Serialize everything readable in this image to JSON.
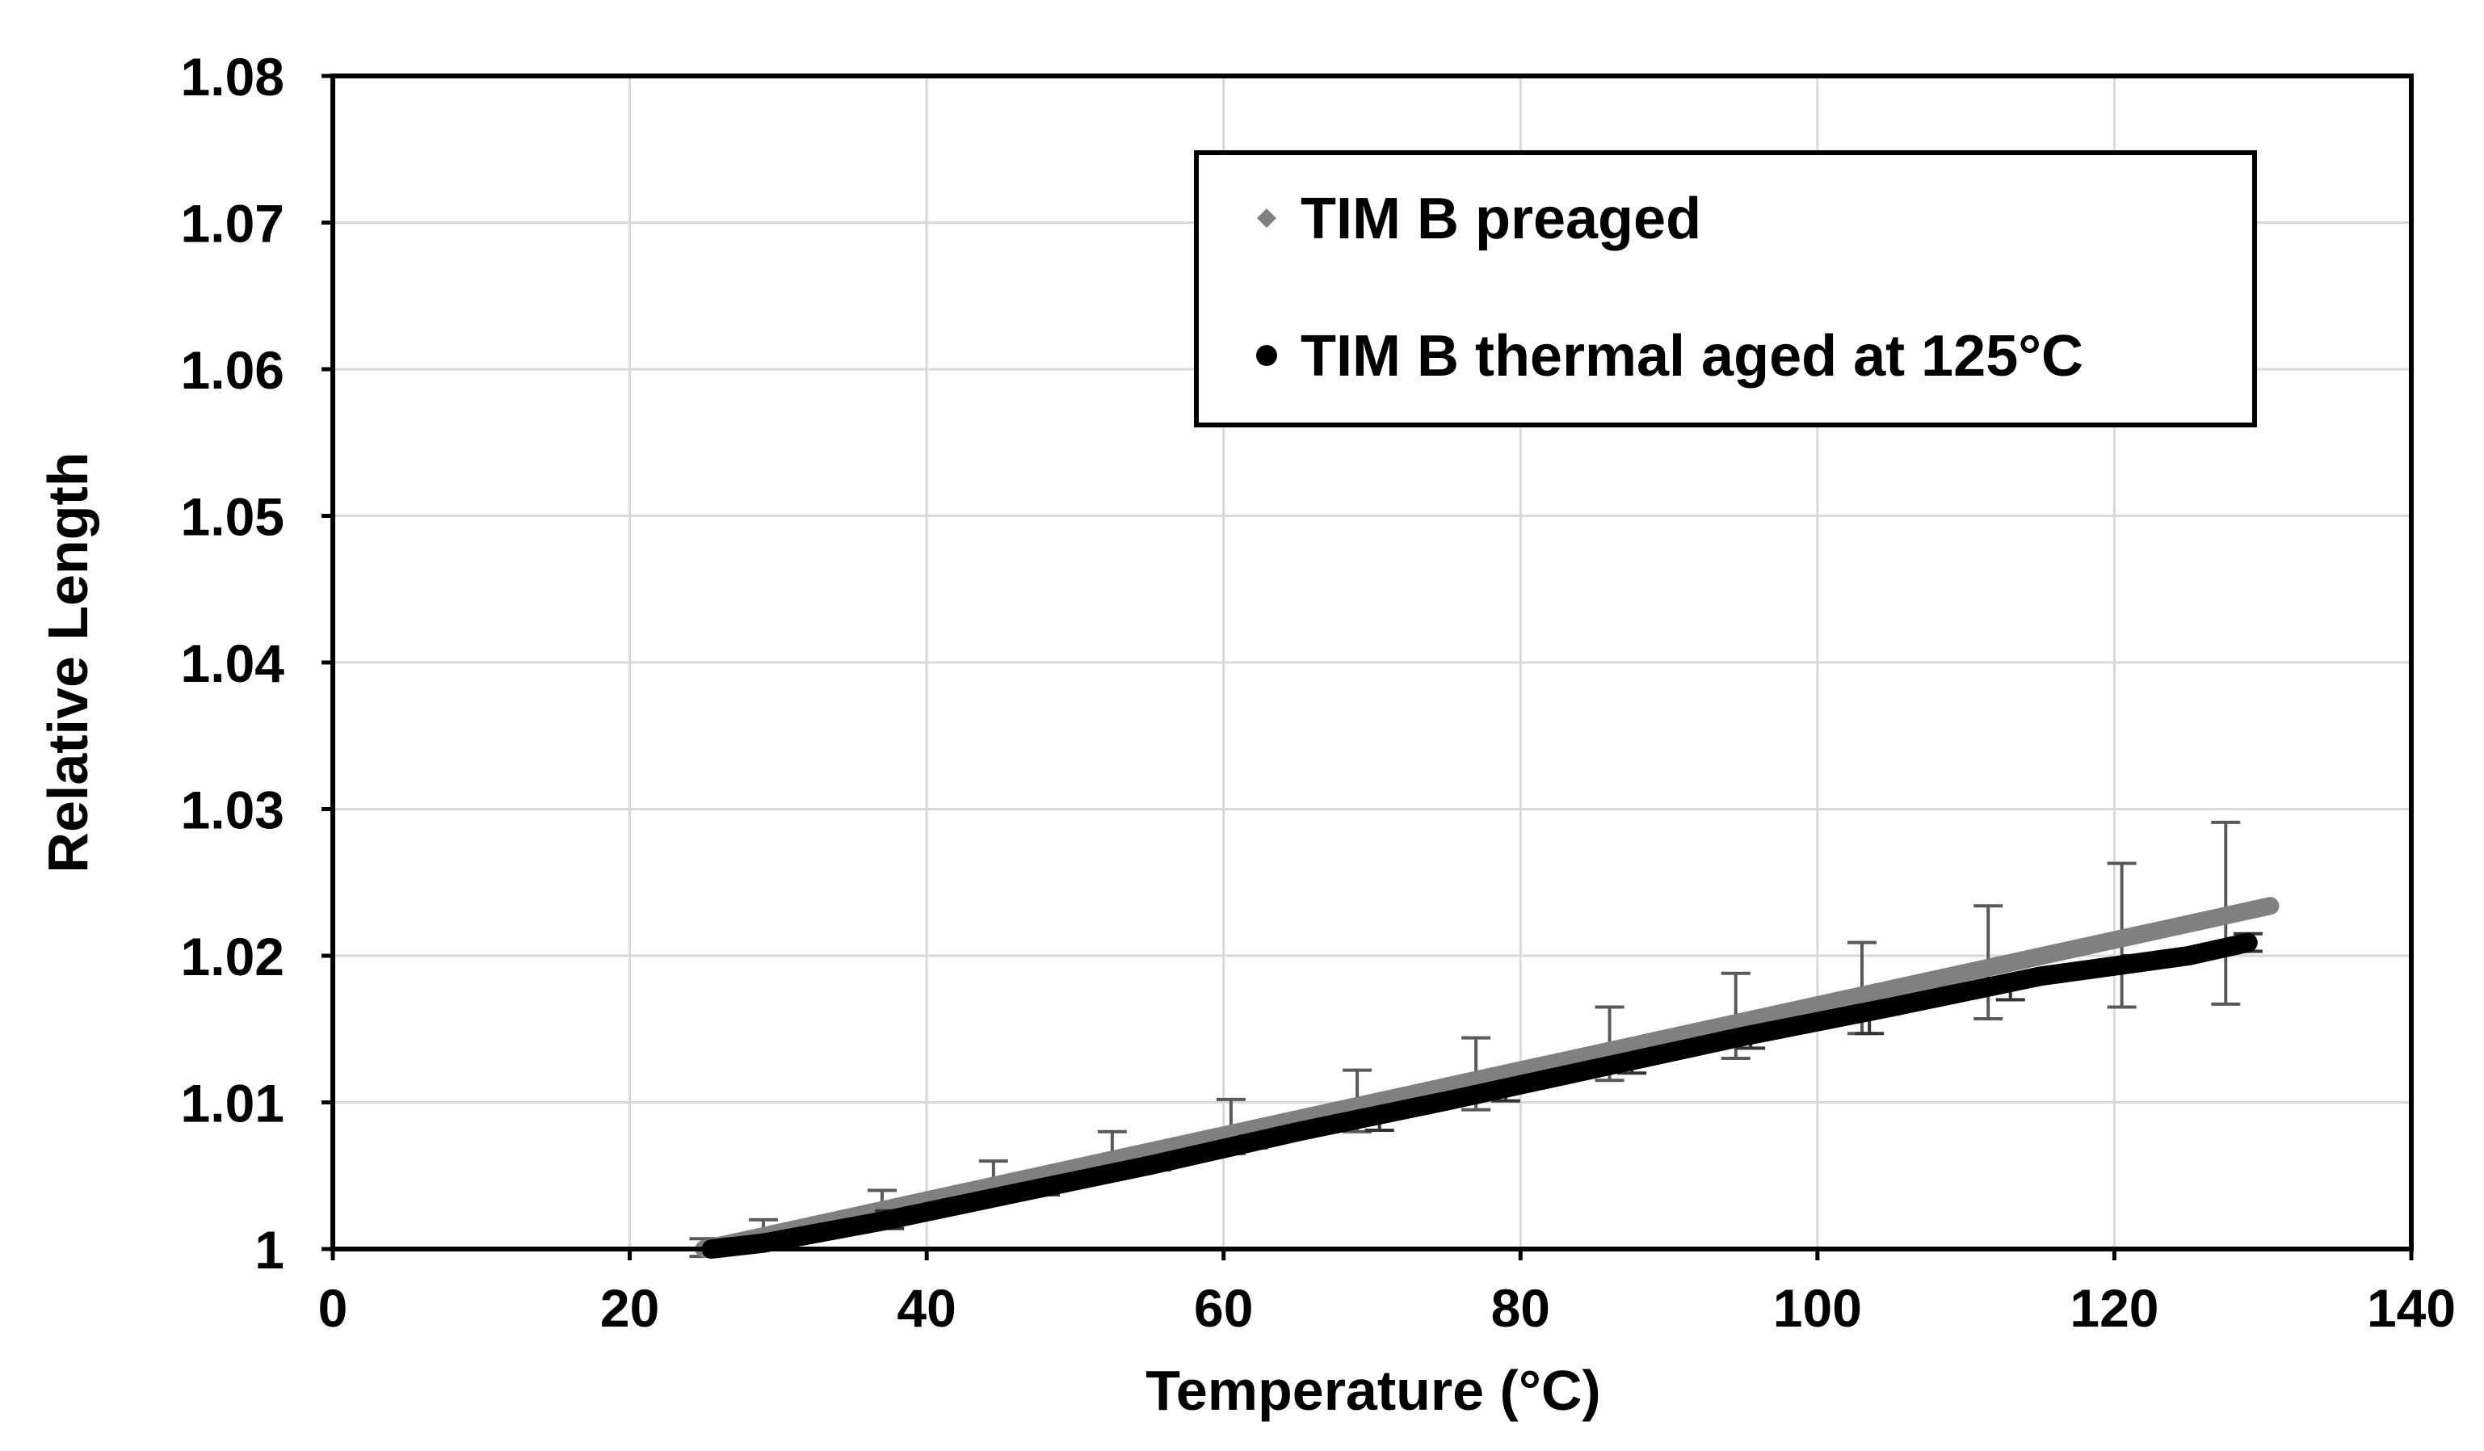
{
  "chart_data": {
    "type": "line",
    "title": "",
    "xlabel": "Temperature (°C)",
    "ylabel": "Relative Length",
    "xlim": [
      0,
      140
    ],
    "ylim": [
      1,
      1.08
    ],
    "x_ticks": [
      "0",
      "20",
      "40",
      "60",
      "80",
      "100",
      "120",
      "140"
    ],
    "y_ticks": [
      "1",
      "1.01",
      "1.02",
      "1.03",
      "1.04",
      "1.05",
      "1.06",
      "1.07",
      "1.08"
    ],
    "x_tick_values": [
      0,
      20,
      40,
      60,
      80,
      100,
      120,
      140
    ],
    "y_tick_values": [
      1,
      1.01,
      1.02,
      1.03,
      1.04,
      1.05,
      1.06,
      1.07,
      1.08
    ],
    "grid": true,
    "legend": {
      "position": "top-right"
    },
    "series": [
      {
        "name": "TIM B preaged",
        "marker": "diamond",
        "color": "#808080",
        "line": [
          [
            25,
            1.0
          ],
          [
            130.5,
            1.0234
          ]
        ],
        "error_bars": [
          {
            "x": 25,
            "y": 1.0002,
            "low": 0.9995,
            "high": 1.0007
          },
          {
            "x": 29,
            "y": 1.0011,
            "low": 1.0005,
            "high": 1.002
          },
          {
            "x": 37,
            "y": 1.0029,
            "low": 1.002,
            "high": 1.004
          },
          {
            "x": 44.5,
            "y": 1.0046,
            "low": 1.0035,
            "high": 1.006
          },
          {
            "x": 52.5,
            "y": 1.0065,
            "low": 1.005,
            "high": 1.008
          },
          {
            "x": 60.5,
            "y": 1.0083,
            "low": 1.0065,
            "high": 1.0102
          },
          {
            "x": 69,
            "y": 1.0101,
            "low": 1.008,
            "high": 1.0122
          },
          {
            "x": 77,
            "y": 1.0119,
            "low": 1.0095,
            "high": 1.0144
          },
          {
            "x": 86,
            "y": 1.014,
            "low": 1.0115,
            "high": 1.0165
          },
          {
            "x": 94.5,
            "y": 1.0158,
            "low": 1.013,
            "high": 1.0188
          },
          {
            "x": 103,
            "y": 1.0177,
            "low": 1.0147,
            "high": 1.0209
          },
          {
            "x": 111.5,
            "y": 1.0196,
            "low": 1.0157,
            "high": 1.0234
          },
          {
            "x": 120.5,
            "y": 1.0215,
            "low": 1.0165,
            "high": 1.0263
          },
          {
            "x": 127.5,
            "y": 1.023,
            "low": 1.0167,
            "high": 1.0291
          }
        ]
      },
      {
        "name": "TIM B thermal aged at 125°C",
        "marker": "circle",
        "color": "#000000",
        "line": [
          [
            25.5,
            1.0
          ],
          [
            29,
            1.0004
          ],
          [
            37,
            1.0019
          ],
          [
            45,
            1.0036
          ],
          [
            55,
            1.0057
          ],
          [
            65,
            1.008
          ],
          [
            75,
            1.0101
          ],
          [
            85,
            1.0123
          ],
          [
            95,
            1.0145
          ],
          [
            105,
            1.0165
          ],
          [
            115,
            1.0186
          ],
          [
            125,
            1.02
          ],
          [
            129,
            1.0209
          ]
        ],
        "error_bars": [
          {
            "x": 30,
            "y": 1.0005,
            "low": 1.0002,
            "high": 1.0008
          },
          {
            "x": 37.5,
            "y": 1.002,
            "low": 1.0014,
            "high": 1.0026
          },
          {
            "x": 48,
            "y": 1.0041,
            "low": 1.0037,
            "high": 1.0045
          },
          {
            "x": 55.5,
            "y": 1.0058,
            "low": 1.0054,
            "high": 1.0062
          },
          {
            "x": 62,
            "y": 1.0073,
            "low": 1.0069,
            "high": 1.0077
          },
          {
            "x": 70.5,
            "y": 1.0085,
            "low": 1.0081,
            "high": 1.0089
          },
          {
            "x": 79,
            "y": 1.0105,
            "low": 1.0101,
            "high": 1.0109
          },
          {
            "x": 87.5,
            "y": 1.0124,
            "low": 1.012,
            "high": 1.0128
          },
          {
            "x": 95.5,
            "y": 1.0141,
            "low": 1.0137,
            "high": 1.0145
          },
          {
            "x": 103.5,
            "y": 1.0155,
            "low": 1.0147,
            "high": 1.0163
          },
          {
            "x": 113,
            "y": 1.0174,
            "low": 1.017,
            "high": 1.0179
          },
          {
            "x": 121.5,
            "y": 1.0196,
            "low": 1.0192,
            "high": 1.02
          },
          {
            "x": 129,
            "y": 1.0209,
            "low": 1.0203,
            "high": 1.0215
          }
        ]
      }
    ]
  }
}
